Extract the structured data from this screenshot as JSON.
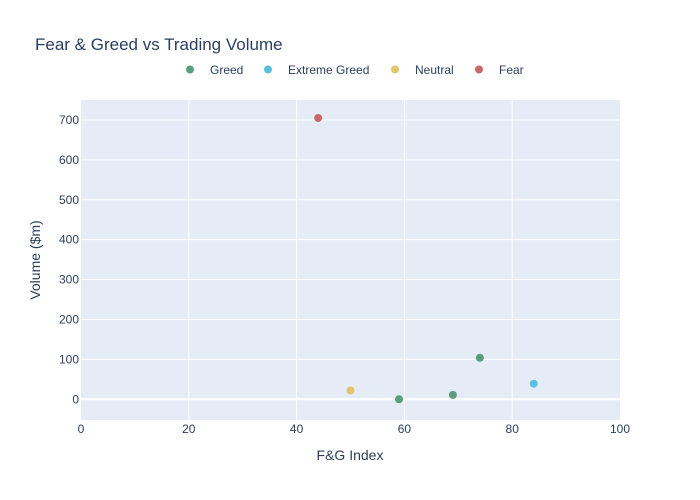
{
  "chart_data": {
    "type": "scatter",
    "title": "Fear & Greed vs Trading Volume",
    "xlabel": "F&G Index",
    "ylabel": "Volume ($m)",
    "xlim": [
      0,
      100
    ],
    "ylim": [
      -52,
      750
    ],
    "x_ticks": [
      0,
      20,
      40,
      60,
      80,
      100
    ],
    "y_ticks": [
      0,
      100,
      200,
      300,
      400,
      500,
      600,
      700
    ],
    "grid": true,
    "legend_position": "top-center",
    "series": [
      {
        "name": "Greed",
        "color": "#5b9e7d",
        "points": [
          [
            59,
            0
          ],
          [
            69,
            11
          ],
          [
            74,
            104
          ]
        ]
      },
      {
        "name": "Extreme Greed",
        "color": "#5bc0de",
        "points": [
          [
            84,
            39
          ]
        ]
      },
      {
        "name": "Neutral",
        "color": "#e3c36e",
        "points": [
          [
            50,
            22
          ]
        ]
      },
      {
        "name": "Fear",
        "color": "#c96868",
        "points": [
          [
            44,
            705
          ]
        ]
      }
    ]
  }
}
